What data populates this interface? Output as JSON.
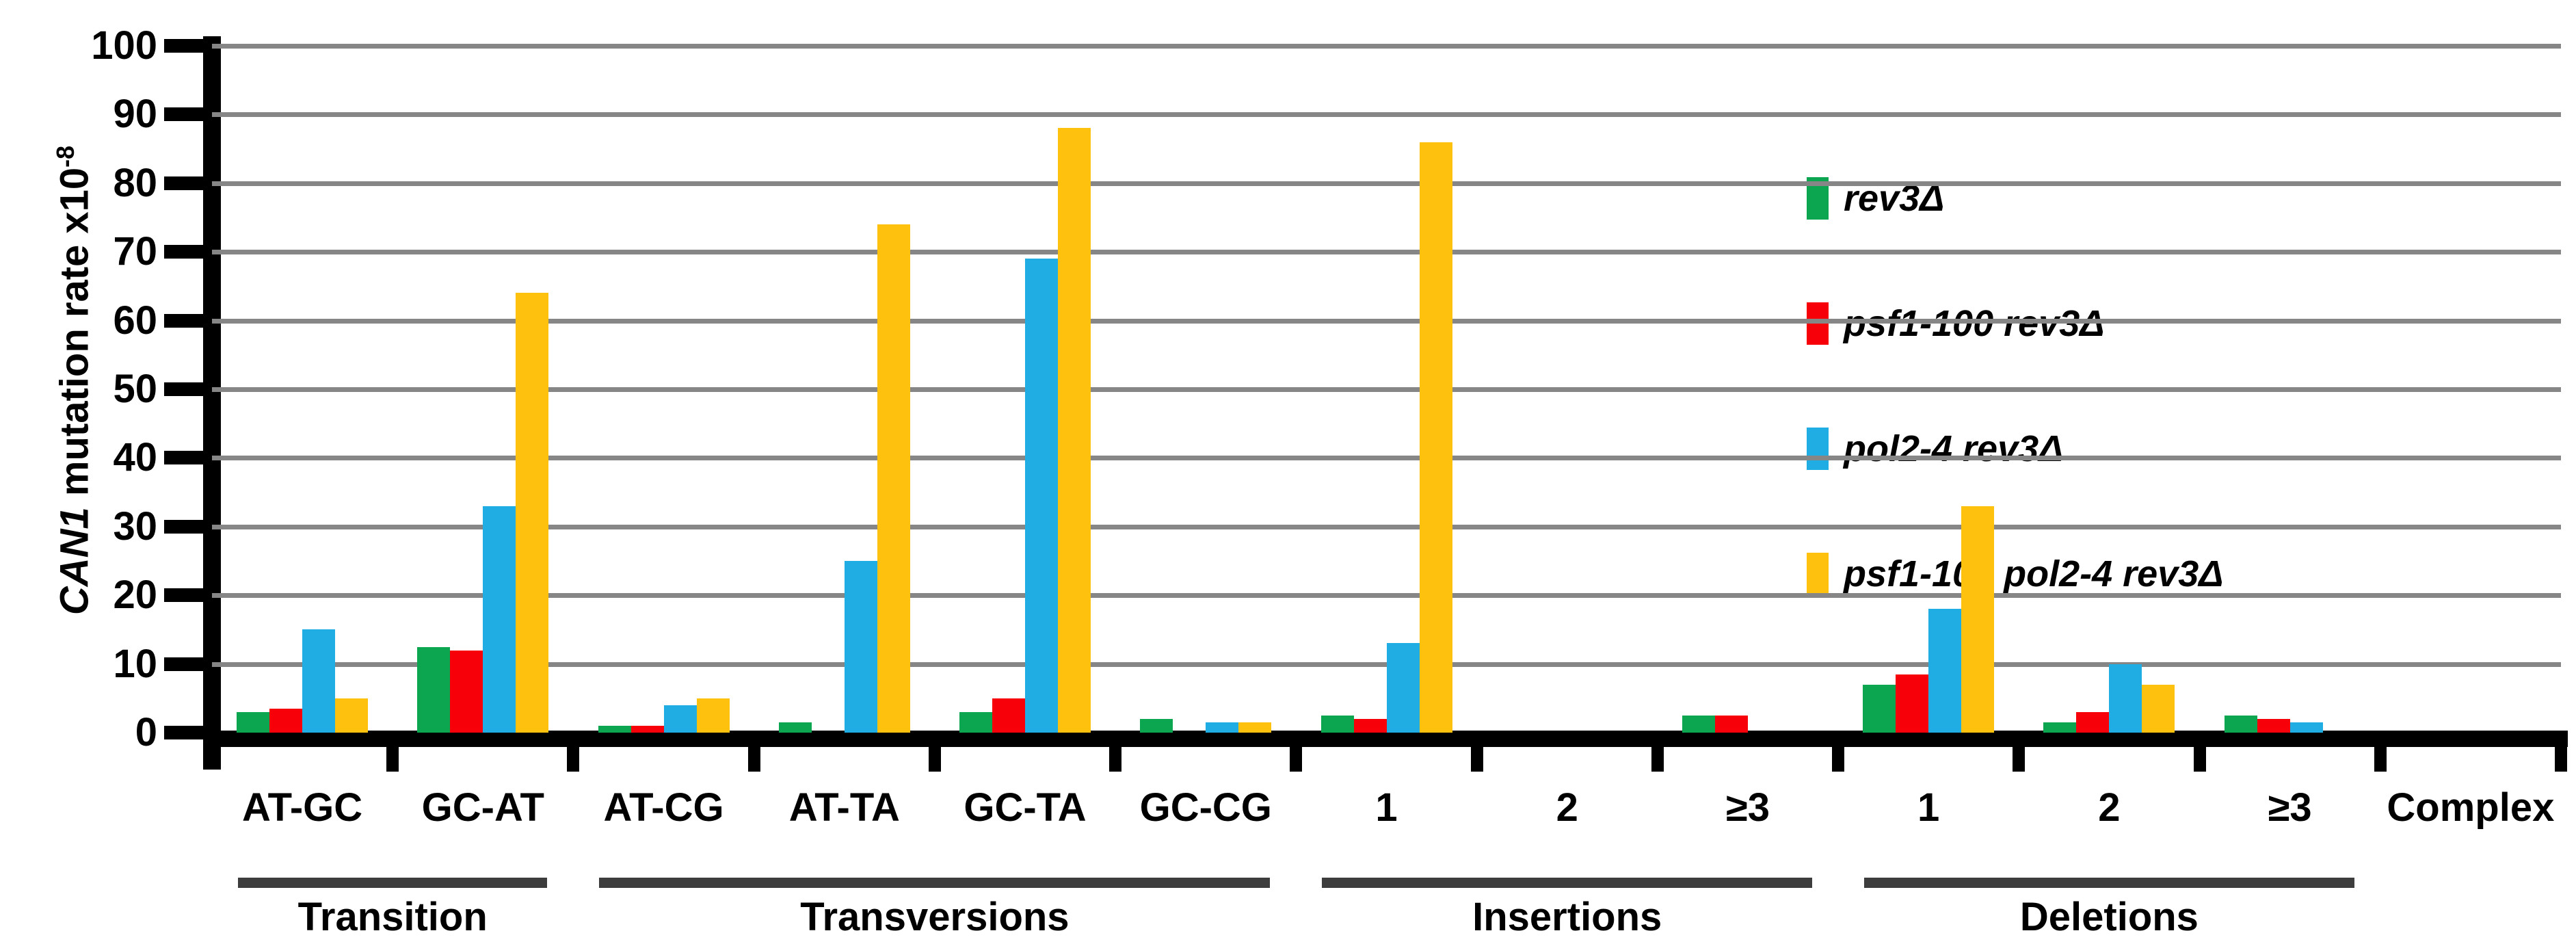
{
  "y_axis": {
    "title_gene": "CAN1",
    "title_rest": " mutation rate x10",
    "title_exponent": "-8"
  },
  "chart_data": {
    "type": "bar",
    "title": "",
    "xlabel": "",
    "ylabel": "CAN1 mutation rate x10^-8",
    "ylim": [
      0,
      100
    ],
    "ytick_interval": 10,
    "grid": true,
    "legend_position": "upper right",
    "categories": [
      "AT-GC",
      "GC-AT",
      "AT-CG",
      "AT-TA",
      "GC-TA",
      "GC-CG",
      "1",
      "2",
      "≥3",
      "1",
      "2",
      "≥3",
      "Complex"
    ],
    "group_spans": [
      {
        "label": "Transition",
        "start": 0,
        "count": 2
      },
      {
        "label": "Transversions",
        "start": 2,
        "count": 4
      },
      {
        "label": "Insertions",
        "start": 6,
        "count": 3
      },
      {
        "label": "Deletions",
        "start": 9,
        "count": 3
      }
    ],
    "series": [
      {
        "name": "rev3Δ",
        "color": "#0ba64f",
        "values": [
          3,
          12.5,
          1,
          1.5,
          3,
          2,
          2.5,
          0,
          2.5,
          7,
          1.5,
          2.5,
          0
        ]
      },
      {
        "name": "psf1-100 rev3Δ",
        "color": "#f80009",
        "values": [
          3.5,
          12,
          1,
          0,
          5,
          0,
          2,
          0,
          2.5,
          8.5,
          3,
          2,
          0
        ]
      },
      {
        "name": "pol2-4 rev3Δ",
        "color": "#1fade3",
        "values": [
          15,
          33,
          4,
          25,
          69,
          1.5,
          13,
          0,
          0,
          18,
          10,
          1.5,
          0
        ]
      },
      {
        "name": "psf1-100 pol2-4 rev3Δ",
        "color": "#fec10d",
        "values": [
          5,
          64,
          5,
          74,
          88,
          1.5,
          86,
          0,
          0,
          33,
          7,
          0,
          0
        ]
      }
    ],
    "colors": {
      "axis": "#000000",
      "gridline": "#868686",
      "group_underline": "#3d3d3d"
    }
  }
}
